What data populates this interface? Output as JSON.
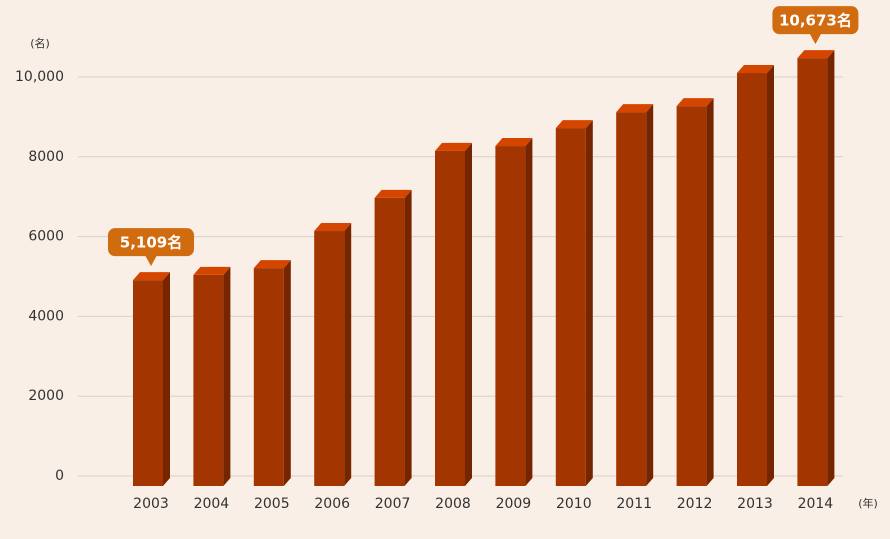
{
  "chart_data": {
    "type": "bar3d",
    "y_axis_label": "(名)",
    "x_axis_label": "(年)",
    "categories": [
      "2003",
      "2004",
      "2005",
      "2006",
      "2007",
      "2008",
      "2009",
      "2010",
      "2011",
      "2012",
      "2013",
      "2014"
    ],
    "values": [
      5109,
      5240,
      5410,
      6340,
      7170,
      8350,
      8470,
      8920,
      9320,
      9470,
      10300,
      10673
    ],
    "value_labels": [
      "5,109名",
      null,
      null,
      null,
      null,
      null,
      null,
      null,
      null,
      null,
      null,
      "10,673名"
    ],
    "color": "#a33500",
    "label_color": "#d06b10",
    "ylim": [
      0,
      10000
    ],
    "yticks": [
      0,
      2000,
      4000,
      6000,
      8000,
      {
        "value": 10000,
        "label": "10,000"
      }
    ],
    "grid": true
  }
}
